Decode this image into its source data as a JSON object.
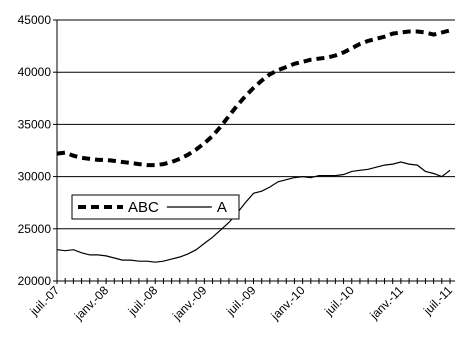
{
  "chart_data": {
    "type": "line",
    "categories": [
      "juil.-07",
      null,
      null,
      null,
      null,
      null,
      "janv.-08",
      null,
      null,
      null,
      null,
      null,
      "juil.-08",
      null,
      null,
      null,
      null,
      null,
      "janv.-09",
      null,
      null,
      null,
      null,
      null,
      "juil.-09",
      null,
      null,
      null,
      null,
      null,
      "janv.-10",
      null,
      null,
      null,
      null,
      null,
      "juil.-10",
      null,
      null,
      null,
      null,
      null,
      "janv.-11",
      null,
      null,
      null,
      null,
      null,
      "juil.-11"
    ],
    "series": [
      {
        "name": "ABC",
        "color": "#000000",
        "dash": true,
        "values": [
          32200,
          32300,
          32000,
          31800,
          31700,
          31600,
          31600,
          31500,
          31400,
          31300,
          31200,
          31100,
          31100,
          31200,
          31400,
          31700,
          32100,
          32600,
          33200,
          33900,
          34800,
          35800,
          36800,
          37700,
          38500,
          39200,
          39800,
          40200,
          40500,
          40800,
          41000,
          41200,
          41300,
          41400,
          41600,
          41900,
          42300,
          42700,
          43000,
          43200,
          43400,
          43700,
          43800,
          43900,
          43900,
          43800,
          43600,
          43800,
          44000
        ]
      },
      {
        "name": "A",
        "color": "#000000",
        "dash": false,
        "values": [
          23000,
          22900,
          23000,
          22700,
          22500,
          22500,
          22400,
          22200,
          22000,
          22000,
          21900,
          21900,
          21800,
          21900,
          22100,
          22300,
          22600,
          23000,
          23600,
          24200,
          24900,
          25600,
          26500,
          27500,
          28400,
          28600,
          29000,
          29500,
          29700,
          29900,
          30000,
          29900,
          30100,
          30100,
          30100,
          30200,
          30500,
          30600,
          30700,
          30900,
          31100,
          31200,
          31400,
          31200,
          31100,
          30500,
          30300,
          30000,
          30600
        ]
      }
    ],
    "ylim": [
      20000,
      45000
    ],
    "yticks": [
      20000,
      25000,
      30000,
      35000,
      40000,
      45000
    ],
    "grid": true
  }
}
